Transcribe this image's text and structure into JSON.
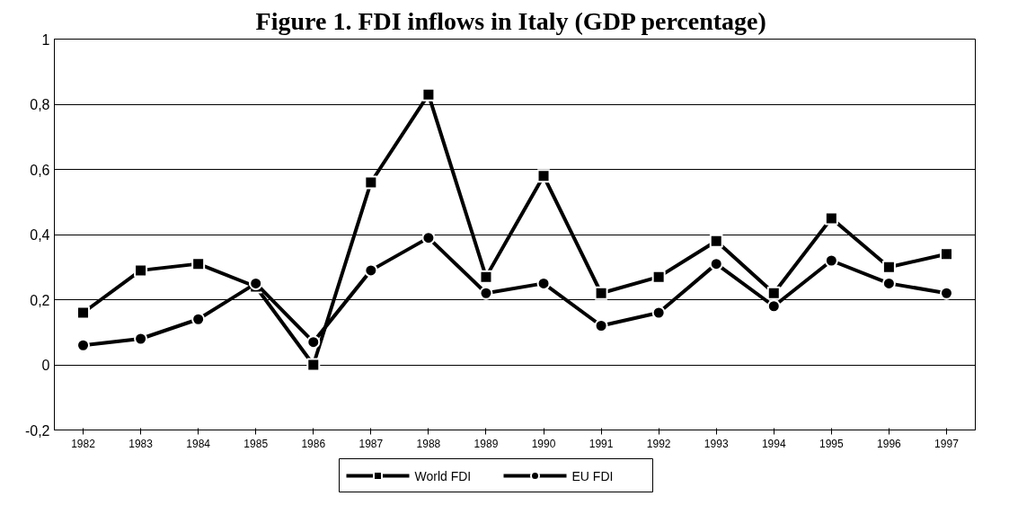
{
  "chart_data": {
    "type": "line",
    "title": "Figure 1.  FDI inflows in Italy (GDP percentage)",
    "categories": [
      "1982",
      "1983",
      "1984",
      "1985",
      "1986",
      "1987",
      "1988",
      "1989",
      "1990",
      "1991",
      "1992",
      "1993",
      "1994",
      "1995",
      "1996",
      "1997"
    ],
    "series": [
      {
        "name": "World FDI",
        "color": "#000000",
        "marker": "square",
        "values": [
          0.16,
          0.29,
          0.31,
          0.24,
          0.0,
          0.56,
          0.83,
          0.27,
          0.58,
          0.22,
          0.27,
          0.38,
          0.22,
          0.45,
          0.3,
          0.34
        ]
      },
      {
        "name": "EU FDI",
        "color": "#000000",
        "marker": "circle",
        "values": [
          0.06,
          0.08,
          0.14,
          0.25,
          0.07,
          0.29,
          0.39,
          0.22,
          0.25,
          0.12,
          0.16,
          0.31,
          0.18,
          0.32,
          0.25,
          0.22
        ]
      }
    ],
    "ylim": [
      -0.2,
      1
    ],
    "yticks": [
      {
        "value": -0.2,
        "label": "-0,2"
      },
      0,
      {
        "value": 0.2,
        "label": "0,2"
      },
      {
        "value": 0.4,
        "label": "0,4"
      },
      {
        "value": 0.6,
        "label": "0,6"
      },
      {
        "value": 0.8,
        "label": "0,8"
      },
      1
    ],
    "grid": "y",
    "legend": "bottom",
    "line_style": "solid"
  }
}
